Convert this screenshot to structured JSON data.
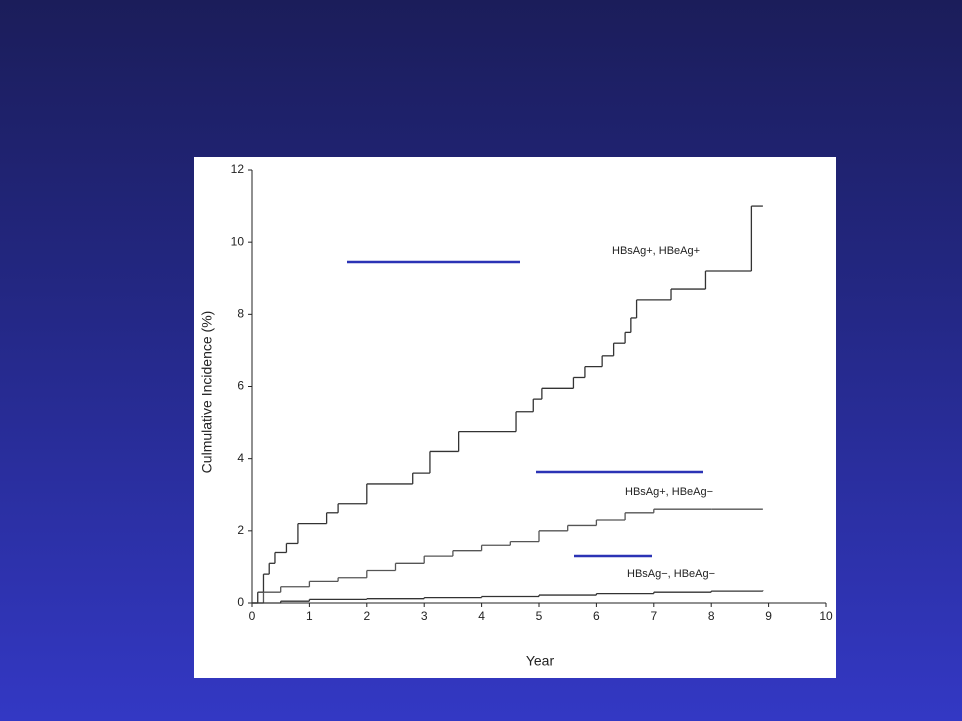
{
  "chart_data": {
    "type": "line",
    "step": true,
    "x_label": "Year",
    "y_label": "Culmulative Incidence (%)",
    "xlim": [
      0,
      10
    ],
    "xticks": [
      0,
      1,
      2,
      3,
      4,
      5,
      6,
      7,
      8,
      9,
      10
    ],
    "ylim": [
      0,
      12
    ],
    "yticks": [
      0,
      2,
      4,
      6,
      8,
      10,
      12
    ],
    "grid": false,
    "series": [
      {
        "name": "HBsAg+, HBeAg+",
        "color": "#333333",
        "x": [
          0,
          0.1,
          0.2,
          0.3,
          0.4,
          0.6,
          0.8,
          1.3,
          1.5,
          2.0,
          2.8,
          3.1,
          3.6,
          4.6,
          4.9,
          5.05,
          5.6,
          5.8,
          6.1,
          6.3,
          6.5,
          6.6,
          6.7,
          7.3,
          7.9,
          8.7,
          8.9
        ],
        "values": [
          0,
          0.3,
          0.8,
          1.1,
          1.4,
          1.65,
          2.2,
          2.5,
          2.75,
          3.3,
          3.6,
          4.2,
          4.75,
          5.3,
          5.65,
          5.95,
          6.25,
          6.55,
          6.85,
          7.2,
          7.5,
          7.9,
          8.4,
          8.7,
          9.2,
          11.0,
          11.0
        ]
      },
      {
        "name": "HBsAg+, HBeAg−",
        "color": "#555555",
        "x": [
          0,
          0.2,
          0.5,
          1,
          1.5,
          2,
          2.5,
          3,
          3.5,
          4,
          4.5,
          5,
          5.5,
          6,
          6.5,
          7,
          8,
          8.9
        ],
        "values": [
          0,
          0.3,
          0.45,
          0.6,
          0.7,
          0.9,
          1.1,
          1.3,
          1.45,
          1.6,
          1.7,
          2.0,
          2.15,
          2.3,
          2.5,
          2.6,
          2.6,
          2.6
        ]
      },
      {
        "name": "HBsAg−, HBeAg−",
        "color": "#333333",
        "x": [
          0,
          0.5,
          1,
          2,
          3,
          4,
          5,
          6,
          7,
          8,
          8.9
        ],
        "values": [
          0,
          0.05,
          0.1,
          0.12,
          0.15,
          0.18,
          0.22,
          0.26,
          0.3,
          0.33,
          0.35
        ]
      }
    ]
  }
}
